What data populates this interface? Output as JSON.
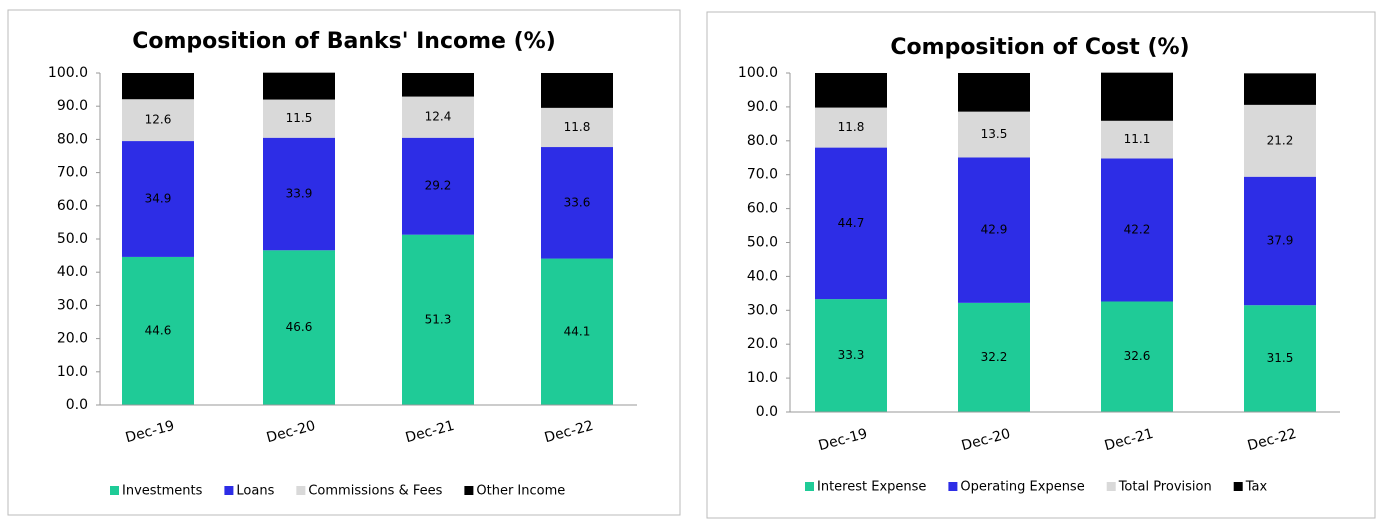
{
  "chart_data": [
    {
      "type": "stacked-bar",
      "title": "Composition of Banks' Income (%)",
      "categories": [
        "Dec-19",
        "Dec-20",
        "Dec-21",
        "Dec-22"
      ],
      "series": [
        {
          "name": "Investments",
          "color": "#1fcb97",
          "values": [
            44.6,
            46.6,
            51.3,
            44.1
          ]
        },
        {
          "name": "Loans",
          "color": "#2d2de6",
          "values": [
            34.9,
            33.9,
            29.2,
            33.6
          ]
        },
        {
          "name": "Commissions & Fees",
          "color": "#d9d9d9",
          "values": [
            12.6,
            11.5,
            12.4,
            11.8
          ]
        },
        {
          "name": "Other Income",
          "color": "#000000",
          "values": [
            7.9,
            8.1,
            7.1,
            10.5
          ]
        }
      ],
      "ylim": [
        0,
        100
      ],
      "yticks": [
        {
          "value": 0,
          "label": "0.0"
        },
        {
          "value": 10,
          "label": "10.0"
        },
        {
          "value": 20,
          "label": "20.0"
        },
        {
          "value": 30,
          "label": "30.0"
        },
        {
          "value": 40,
          "label": "40.0"
        },
        {
          "value": 50,
          "label": "50.0"
        },
        {
          "value": 60,
          "label": "60.0"
        },
        {
          "value": 70,
          "label": "70.0"
        },
        {
          "value": 80,
          "label": "80.0"
        },
        {
          "value": 90,
          "label": "90.0"
        },
        {
          "value": 100,
          "label": "100.0"
        }
      ],
      "legend": "bottom"
    },
    {
      "type": "stacked-bar",
      "title": "Composition of Cost (%)",
      "categories": [
        "Dec-19",
        "Dec-20",
        "Dec-21",
        "Dec-22"
      ],
      "series": [
        {
          "name": "Interest Expense",
          "color": "#1fcb97",
          "values": [
            33.3,
            32.2,
            32.6,
            31.5
          ]
        },
        {
          "name": "Operating Expense",
          "color": "#2d2de6",
          "values": [
            44.7,
            42.9,
            42.2,
            37.9
          ]
        },
        {
          "name": "Total Provision",
          "color": "#d9d9d9",
          "values": [
            11.8,
            13.5,
            11.1,
            21.2
          ]
        },
        {
          "name": "Tax",
          "color": "#000000",
          "values": [
            10.2,
            11.4,
            14.2,
            9.3
          ]
        }
      ],
      "ylim": [
        0,
        100
      ],
      "yticks": [
        {
          "value": 0,
          "label": "0.0"
        },
        {
          "value": 10,
          "label": "10.0"
        },
        {
          "value": 20,
          "label": "20.0"
        },
        {
          "value": 30,
          "label": "30.0"
        },
        {
          "value": 40,
          "label": "40.0"
        },
        {
          "value": 50,
          "label": "50.0"
        },
        {
          "value": 60,
          "label": "60.0"
        },
        {
          "value": 70,
          "label": "70.0"
        },
        {
          "value": 80,
          "label": "80.0"
        },
        {
          "value": 90,
          "label": "90.0"
        },
        {
          "value": 100,
          "label": "100.0"
        }
      ],
      "legend": "bottom"
    }
  ]
}
